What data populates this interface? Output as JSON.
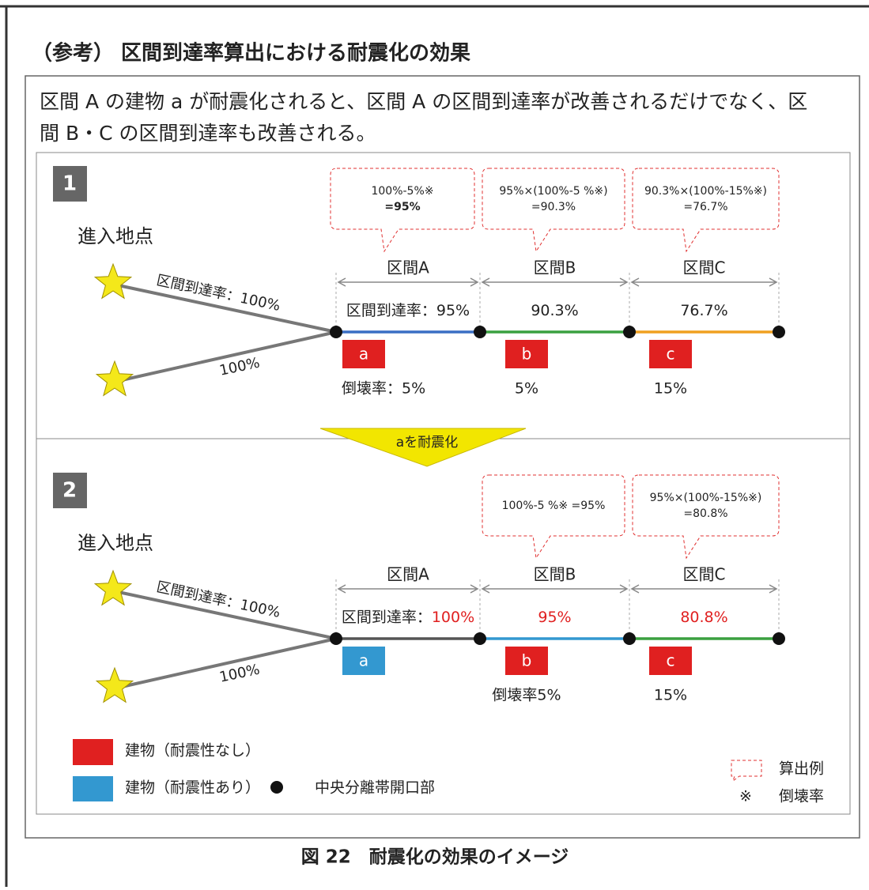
{
  "heading": "（参考） 区間到達率算出における耐震化の効果",
  "intro": [
    "区間 A の建物 a が耐震化されると、区間 A の区間到達率が改善されるだけでなく、区",
    "間 B・C の区間到達率も改善される。"
  ],
  "panels": [
    {
      "number": "1",
      "entry": "進入地点",
      "route_upper": "区間到達率：100%",
      "route_lower": "100%",
      "sections": [
        {
          "name": "区間A",
          "rate": "区間到達率：95%",
          "building": "a",
          "collapse": "倒壊率：5%",
          "line_color": "#3a6fc4",
          "building_color": "#e02020",
          "callout": [
            "100%-5%※",
            "=95%"
          ]
        },
        {
          "name": "区間B",
          "rate": "90.3%",
          "building": "b",
          "collapse": "5%",
          "line_color": "#3aa040",
          "building_color": "#e02020",
          "callout": [
            "95%×(100%-5 %※)",
            "=90.3%"
          ]
        },
        {
          "name": "区間C",
          "rate": "76.7%",
          "building": "c",
          "collapse": "15%",
          "line_color": "#f0a020",
          "building_color": "#e02020",
          "callout": [
            "90.3%×(100%-15%※)",
            "=76.7%"
          ]
        }
      ]
    },
    {
      "number": "2",
      "entry": "進入地点",
      "route_upper": "区間到達率：100%",
      "route_lower": "100%",
      "sections": [
        {
          "name": "区間A",
          "rate_prefix": "区間到達率：",
          "rate": "100%",
          "building": "a",
          "line_color": "#555555",
          "building_color": "#3398d0"
        },
        {
          "name": "区間B",
          "rate": "95%",
          "building": "b",
          "collapse": "倒壊率5%",
          "line_color": "#3398d0",
          "building_color": "#e02020",
          "callout": [
            "100%-5 %※ =95%"
          ]
        },
        {
          "name": "区間C",
          "rate": "80.8%",
          "building": "c",
          "collapse": "15%",
          "line_color": "#3aa040",
          "building_color": "#e02020",
          "callout": [
            "95%×(100%-15%※)",
            "=80.8%"
          ]
        }
      ]
    }
  ],
  "transition": "aを耐震化",
  "legend": {
    "no_seismic": "建物（耐震性なし）",
    "seismic": "建物（耐震性あり）",
    "opening": "中央分離帯開口部",
    "example": "算出例",
    "mark": "※",
    "mark_meaning": "倒壊率"
  },
  "caption": "図 22　耐震化の効果のイメージ"
}
